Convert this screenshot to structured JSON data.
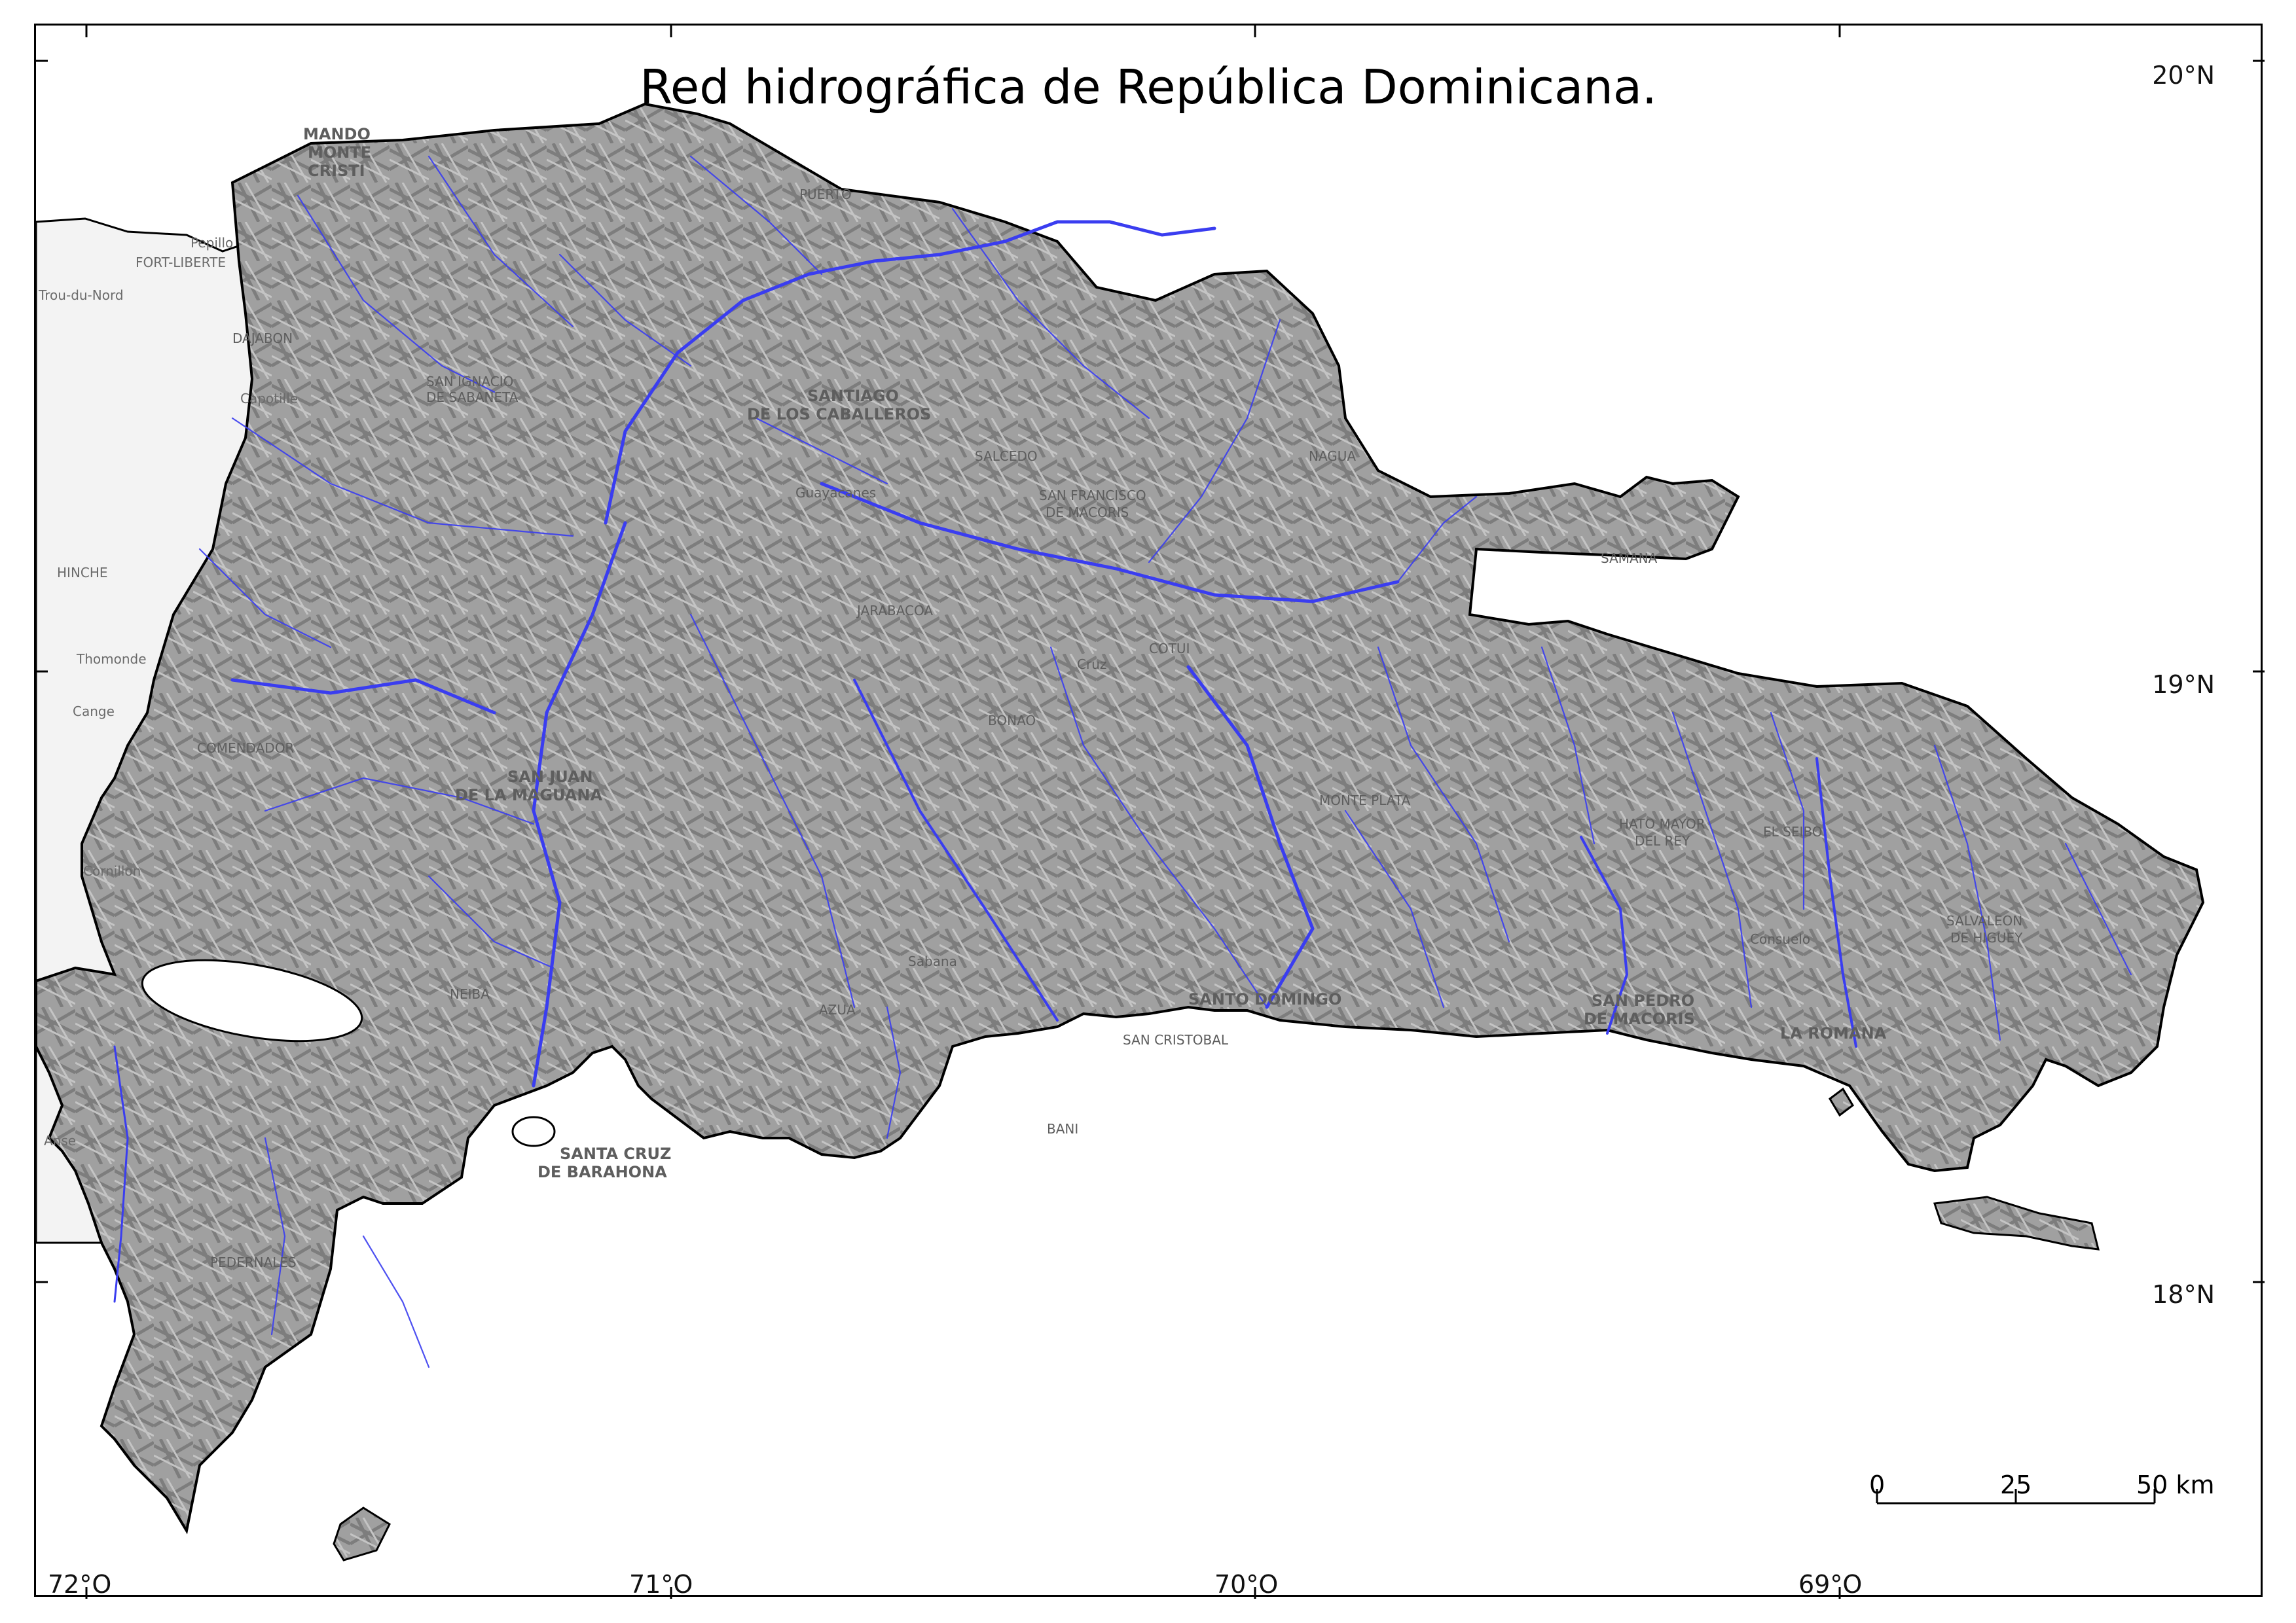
{
  "map": {
    "title": "Red hidrográfica de República Dominicana."
  },
  "graticule": {
    "latitudes": [
      "20°N",
      "19°N",
      "18°N"
    ],
    "longitudes": [
      "72°O",
      "71°O",
      "70°O",
      "69°O"
    ]
  },
  "scale_bar": {
    "labels": [
      "0",
      "25",
      "50 km"
    ]
  },
  "places": {
    "dominican": [
      "MANDO",
      "MONTE",
      "CRISTI",
      "PUERTO",
      "DAJABON",
      "SAN IGNACIO",
      "DE SABANETA",
      "SANTIAGO",
      "DE LOS CABALLEROS",
      "SALCEDO",
      "SAN FRANCISCO",
      "DE MACORIS",
      "NAGUA",
      "SAMANA",
      "JARABACOA",
      "COTUI",
      "BONAO",
      "MONTE PLATA",
      "SAN JUAN",
      "DE LA MAGUANA",
      "HATO MAYOR",
      "DEL REY",
      "EL SEIBO",
      "SALVALEON",
      "DE HIGUEY",
      "SANTO DOMINGO",
      "SAN PEDRO",
      "DE MACORIS",
      "LA ROMANA",
      "SAN CRISTOBAL",
      "AZUA",
      "BANI",
      "NEIBA",
      "SANTA CRUZ",
      "DE BARAHONA",
      "PEDERNALES",
      "COMENDADOR",
      "Cruz",
      "Sabana",
      "Consuelo",
      "Guayacanes"
    ],
    "haiti": [
      "Pepillo",
      "FORT-LIBERTE",
      "Trou-du-Nord",
      "Capotille",
      "HINCHE",
      "Thomonde",
      "Cange",
      "Cornillon",
      "Anse"
    ]
  },
  "colors": {
    "rivers": "#3a3df0",
    "relief": "#9a9a9a",
    "border": "#000000",
    "haiti_land": "#f3f3f3"
  }
}
